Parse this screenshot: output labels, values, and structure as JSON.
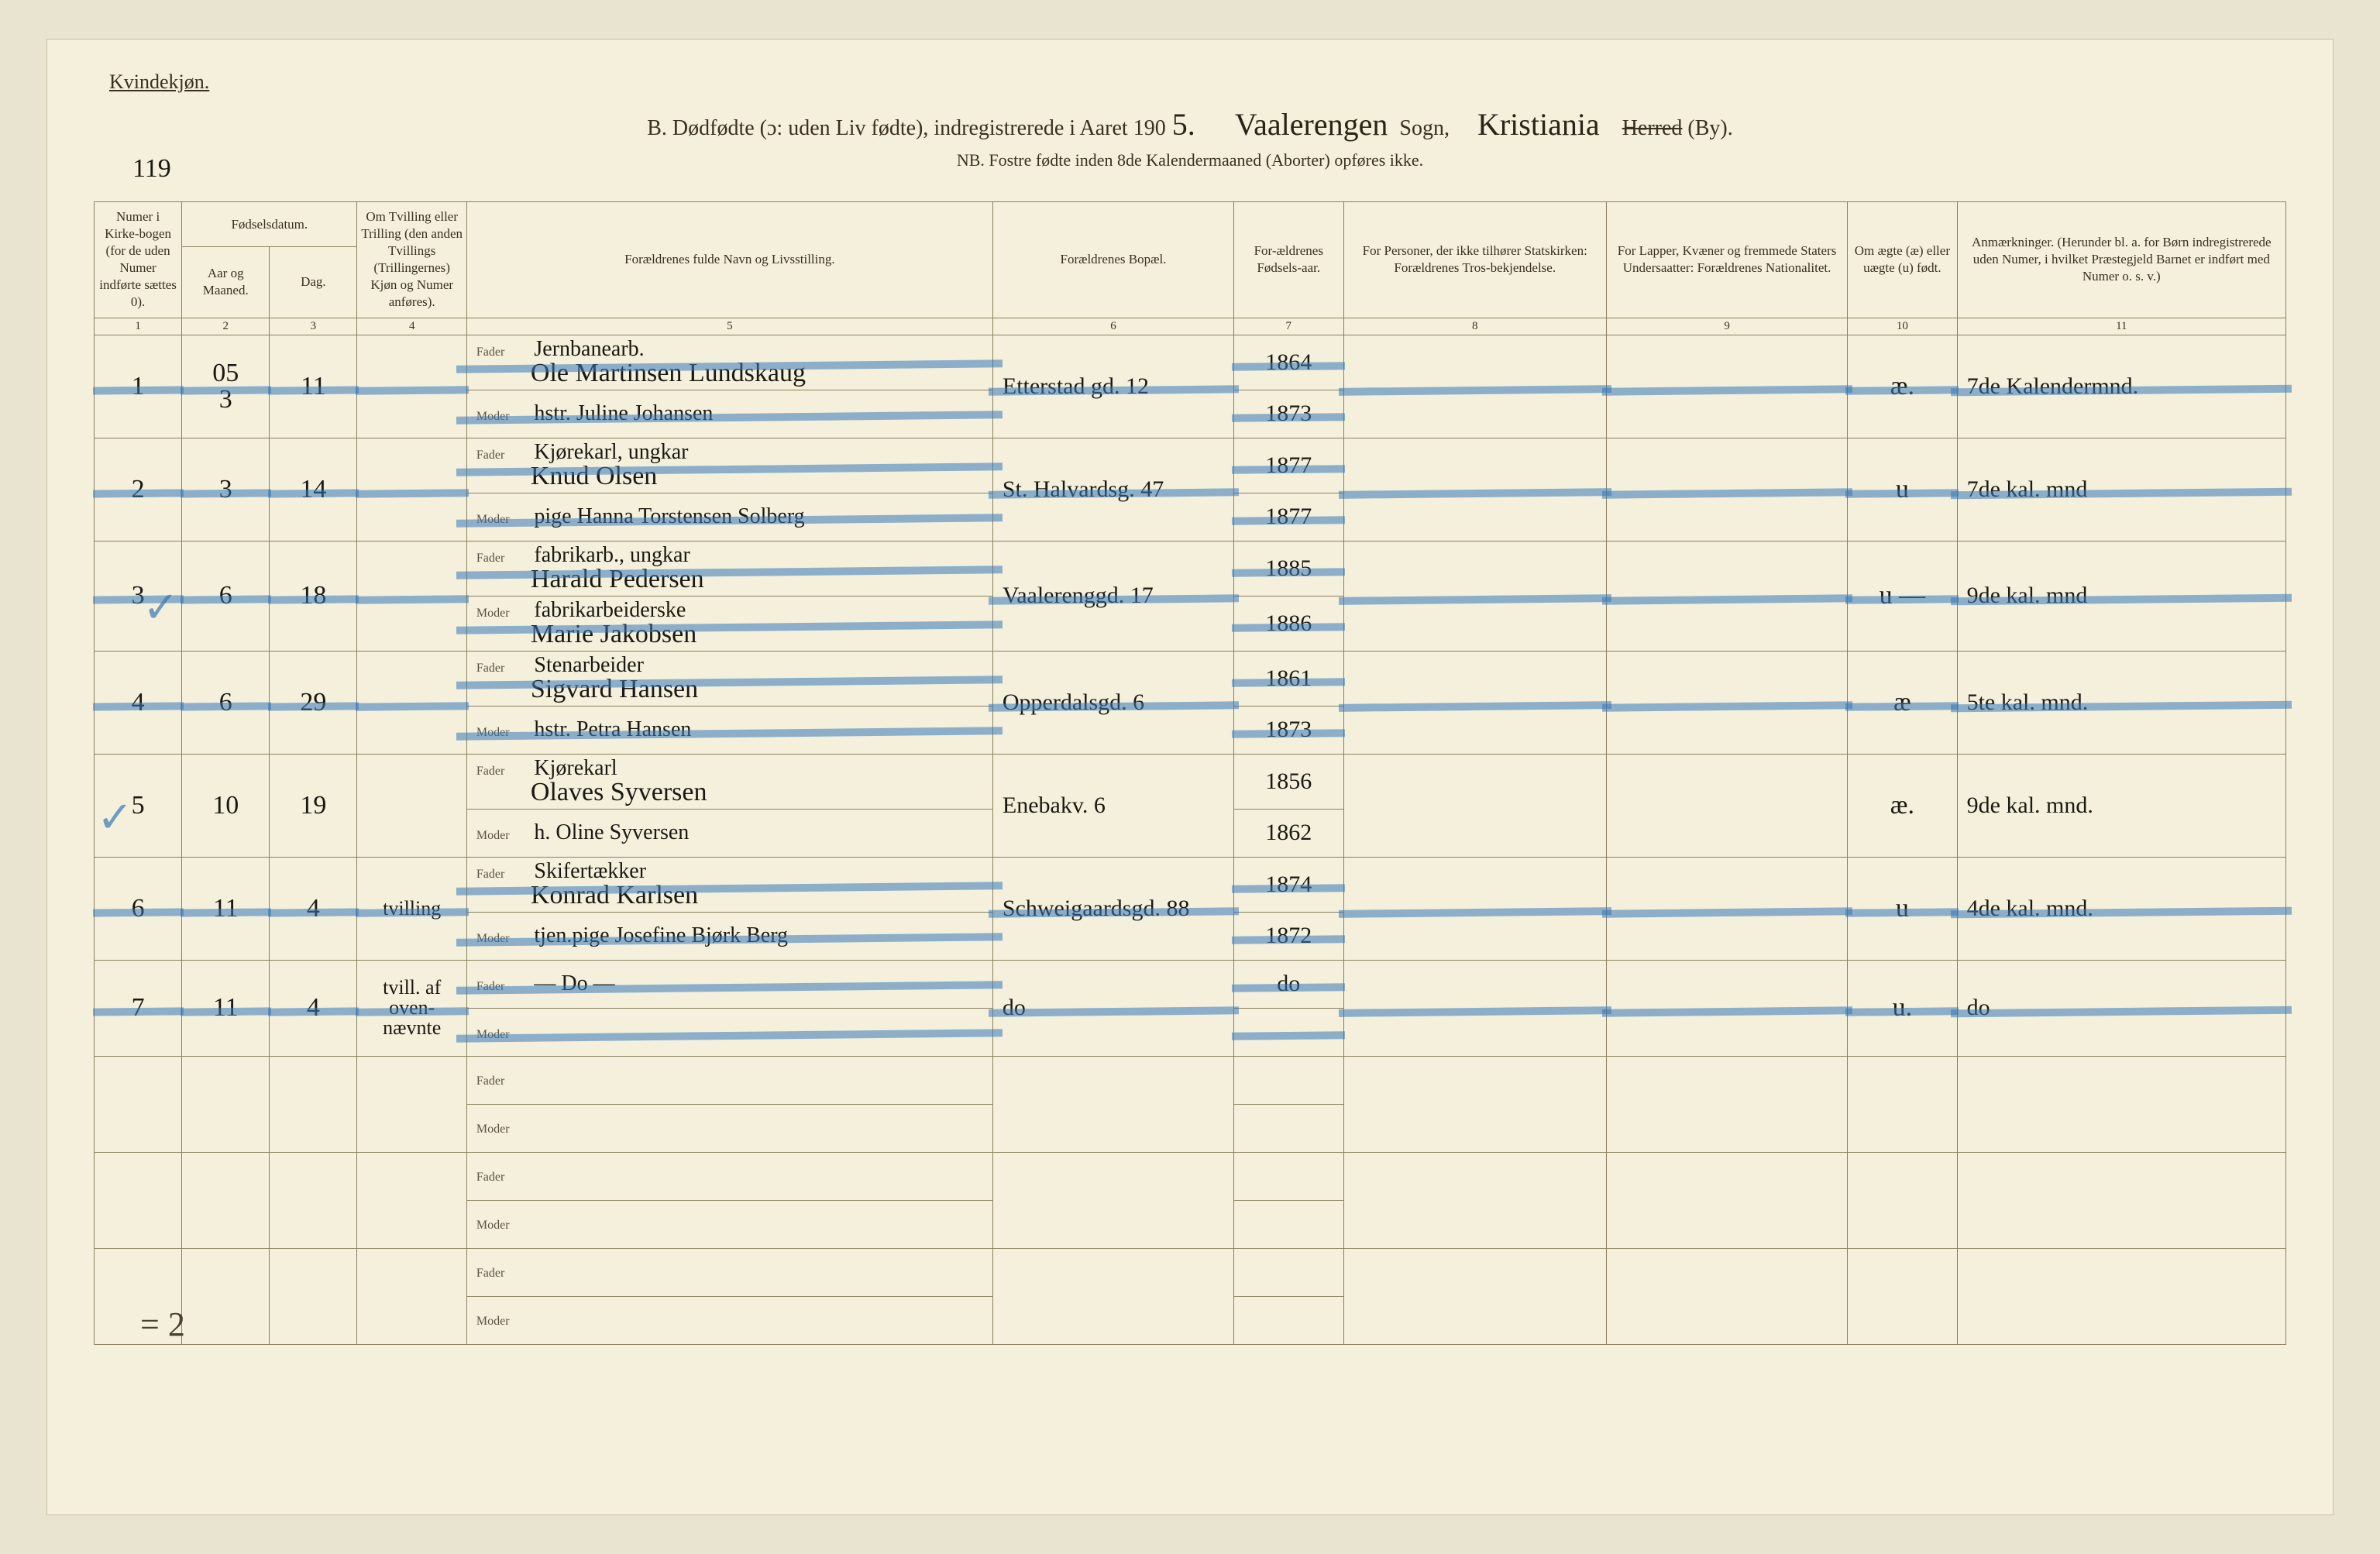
{
  "page": {
    "gender_label": "Kvindekjøn.",
    "page_number": "119",
    "title_prefix": "B.  Dødfødte (ɔ: uden Liv fødte), indregistrerede i Aaret 190",
    "year_suffix": "5.",
    "sogn_hand": "Vaalerengen",
    "sogn_label": "Sogn,",
    "by_hand": "Kristiania",
    "herred_struck": "Herred",
    "by_label": "(By).",
    "nb_line": "NB.  Fostre fødte inden 8de Kalendermaaned (Aborter) opføres ikke.",
    "foot_note": "= 2",
    "colors": {
      "paper": "#f4f0dc",
      "ink": "#1a1812",
      "rule": "#8a8060",
      "blue_pencil": "#3878b8"
    }
  },
  "columns": {
    "c1": "Numer i Kirke-bogen (for de uden Numer indførte sættes 0).",
    "c2_group": "Fødselsdatum.",
    "c2": "Aar og Maaned.",
    "c3": "Dag.",
    "c4": "Om Tvilling eller Trilling (den anden Tvillings (Trillingernes) Kjøn og Numer anføres).",
    "c5": "Forældrenes fulde Navn og Livsstilling.",
    "c6": "Forældrenes Bopæl.",
    "c7": "For-ældrenes Fødsels-aar.",
    "c8": "For Personer, der ikke tilhører Statskirken: Forældrenes Tros-bekjendelse.",
    "c9": "For Lapper, Kvæner og fremmede Staters Undersaatter: Forældrenes Nationalitet.",
    "c10": "Om ægte (æ) eller uægte (u) født.",
    "c11": "Anmærkninger. (Herunder bl. a. for Børn indregistrerede uden Numer, i hvilket Præstegjeld Barnet er indført med Numer o. s. v.)",
    "nums": [
      "1",
      "2",
      "3",
      "4",
      "5",
      "6",
      "7",
      "8",
      "9",
      "10",
      "11"
    ],
    "fader": "Fader",
    "moder": "Moder"
  },
  "rows": [
    {
      "no": "1",
      "month": "3",
      "day": "11",
      "twin": "",
      "fader_occ": "Jernbanearb.",
      "fader": "Ole Martinsen Lundskaug",
      "moder": "hstr. Juline Johansen",
      "bopel": "Etterstad gd. 12",
      "f_aar_f": "1864",
      "f_aar_m": "1873",
      "tros": "",
      "nat": "",
      "ae": "æ.",
      "anm": "7de Kalendermnd.",
      "struck": true,
      "pre_month": "05"
    },
    {
      "no": "2",
      "month": "3",
      "day": "14",
      "twin": "",
      "fader_occ": "Kjørekarl, ungkar",
      "fader": "Knud Olsen",
      "moder": "pige Hanna Torstensen Solberg",
      "bopel": "St. Halvardsg. 47",
      "f_aar_f": "1877",
      "f_aar_m": "1877",
      "tros": "",
      "nat": "",
      "ae": "u",
      "anm": "7de kal. mnd",
      "struck": true
    },
    {
      "no": "3",
      "month": "6",
      "day": "18",
      "twin": "",
      "fader_occ": "fabrikarb., ungkar",
      "fader": "Harald Pedersen",
      "moder_occ": "fabrikarbeiderske",
      "moder": "Marie Jakobsen",
      "bopel": "Vaalerenggd. 17",
      "f_aar_f": "1885",
      "f_aar_m": "1886",
      "tros": "",
      "nat": "",
      "ae": "u —",
      "anm": "9de kal. mnd",
      "struck": true,
      "check": true
    },
    {
      "no": "4",
      "month": "6",
      "day": "29",
      "twin": "",
      "fader_occ": "Stenarbeider",
      "fader": "Sigvard Hansen",
      "moder": "hstr. Petra Hansen",
      "bopel": "Opperdalsgd. 6",
      "f_aar_f": "1861",
      "f_aar_m": "1873",
      "tros": "",
      "nat": "",
      "ae": "æ",
      "anm": "5te kal. mnd.",
      "struck": true
    },
    {
      "no": "5",
      "month": "10",
      "day": "19",
      "twin": "",
      "fader_occ": "Kjørekarl",
      "fader": "Olaves Syversen",
      "moder": "h. Oline Syversen",
      "bopel": "Enebakv. 6",
      "f_aar_f": "1856",
      "f_aar_m": "1862",
      "tros": "",
      "nat": "",
      "ae": "æ.",
      "anm": "9de kal. mnd.",
      "struck": false,
      "check": true
    },
    {
      "no": "6",
      "month": "11",
      "day": "4",
      "twin": "tvilling",
      "fader_occ": "Skifertækker",
      "fader": "Konrad Karlsen",
      "moder": "tjen.pige Josefine Bjørk Berg",
      "bopel": "Schweigaardsgd. 88",
      "f_aar_f": "1874",
      "f_aar_m": "1872",
      "tros": "",
      "nat": "",
      "ae": "u",
      "anm": "4de kal. mnd.",
      "struck": true
    },
    {
      "no": "7",
      "month": "11",
      "day": "4",
      "twin": "tvill. af oven-nævnte",
      "fader": "—   Do   —",
      "moder": "",
      "bopel": "do",
      "f_aar_f": "do",
      "f_aar_m": "",
      "tros": "",
      "nat": "",
      "ae": "u.",
      "anm": "do",
      "struck": true
    }
  ]
}
